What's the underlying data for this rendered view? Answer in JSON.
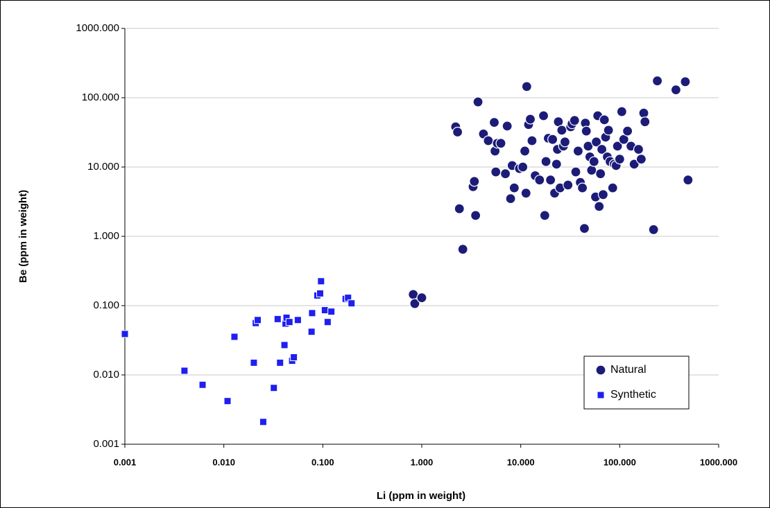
{
  "chart_data": {
    "type": "scatter",
    "x_label": "Li (ppm in weight)",
    "y_label": "Be (ppm in weight)",
    "xscale": "log",
    "yscale": "log",
    "grid": true,
    "legend": "lower right",
    "xlim": [
      0.001,
      1000
    ],
    "ylim": [
      0.001,
      1000
    ],
    "xticks": [
      0.001,
      {
        "value": 0.01,
        "label": "0.010"
      },
      {
        "value": 0.1,
        "label": "0.100"
      },
      {
        "value": 1,
        "label": "1.000"
      },
      {
        "value": 10,
        "label": "10.000"
      },
      {
        "value": 100,
        "label": "100.000"
      },
      {
        "value": 1000,
        "label": "1000.000"
      }
    ],
    "yticks": [
      0.001,
      {
        "value": 0.01,
        "label": "0.010"
      },
      {
        "value": 0.1,
        "label": "0.100"
      },
      {
        "value": 1,
        "label": "1.000"
      },
      {
        "value": 10,
        "label": "10.000"
      },
      {
        "value": 100,
        "label": "100.000"
      },
      {
        "value": 1000,
        "label": "1000.000"
      }
    ],
    "series": [
      {
        "name": "Natural",
        "color": "#1c1c78",
        "marker": "circle",
        "x": [
          0.82,
          0.85,
          1.0,
          2.2,
          2.3,
          2.4,
          2.6,
          3.3,
          3.4,
          3.5,
          3.7,
          4.2,
          4.7,
          5.4,
          5.5,
          5.6,
          5.8,
          6.3,
          7,
          7.3,
          7.9,
          8.2,
          8.6,
          9.7,
          10.5,
          11,
          11.3,
          11.5,
          12,
          12.5,
          13,
          14,
          15.5,
          17,
          17.5,
          18,
          19,
          20,
          21,
          22,
          23,
          23.5,
          24,
          25,
          26,
          27,
          28,
          30,
          32,
          33,
          35,
          36,
          38,
          40,
          42,
          44,
          45,
          46,
          48,
          50,
          52,
          55,
          57,
          58,
          60,
          62,
          64,
          66,
          68,
          70,
          72,
          75,
          77,
          80,
          85,
          88,
          92,
          95,
          100,
          105,
          110,
          120,
          130,
          140,
          155,
          165,
          175,
          180,
          220,
          240,
          370,
          460,
          490
        ],
        "values": [
          0.145,
          0.107,
          0.13,
          38,
          32,
          2.5,
          0.65,
          5.2,
          6.2,
          2.0,
          87,
          30,
          24,
          44,
          17,
          8.5,
          22,
          22,
          8,
          39,
          3.5,
          10.5,
          5,
          9.5,
          10,
          17,
          4.2,
          145,
          41,
          49,
          24,
          7.5,
          6.5,
          55,
          2,
          12,
          26,
          6.5,
          25,
          4.2,
          11,
          18,
          45,
          5,
          34,
          20,
          23,
          5.5,
          38,
          42,
          47,
          8.5,
          17,
          6,
          5,
          1.3,
          43,
          33,
          20,
          14,
          9,
          12,
          3.7,
          23,
          55,
          2.7,
          8,
          18,
          4,
          48,
          27,
          14,
          34,
          12,
          5,
          11,
          10.5,
          20,
          13,
          63,
          25,
          33,
          20,
          11,
          18,
          13,
          60,
          45,
          1.25,
          175,
          130,
          170,
          6.5
        ]
      },
      {
        "name": "Synthetic",
        "color": "#1f1ff0",
        "marker": "square",
        "x": [
          0.001,
          0.004,
          0.0061,
          0.0109,
          0.0128,
          0.0201,
          0.021,
          0.022,
          0.025,
          0.032,
          0.035,
          0.037,
          0.041,
          0.042,
          0.043,
          0.046,
          0.049,
          0.051,
          0.056,
          0.077,
          0.078,
          0.088,
          0.094,
          0.096,
          0.105,
          0.112,
          0.122,
          0.17,
          0.18,
          0.195
        ],
        "values": [
          0.039,
          0.0115,
          0.0072,
          0.0042,
          0.0355,
          0.015,
          0.056,
          0.062,
          0.0021,
          0.0065,
          0.064,
          0.015,
          0.027,
          0.055,
          0.067,
          0.058,
          0.016,
          0.018,
          0.062,
          0.042,
          0.078,
          0.14,
          0.15,
          0.225,
          0.086,
          0.058,
          0.082,
          0.125,
          0.13,
          0.108
        ]
      }
    ]
  }
}
